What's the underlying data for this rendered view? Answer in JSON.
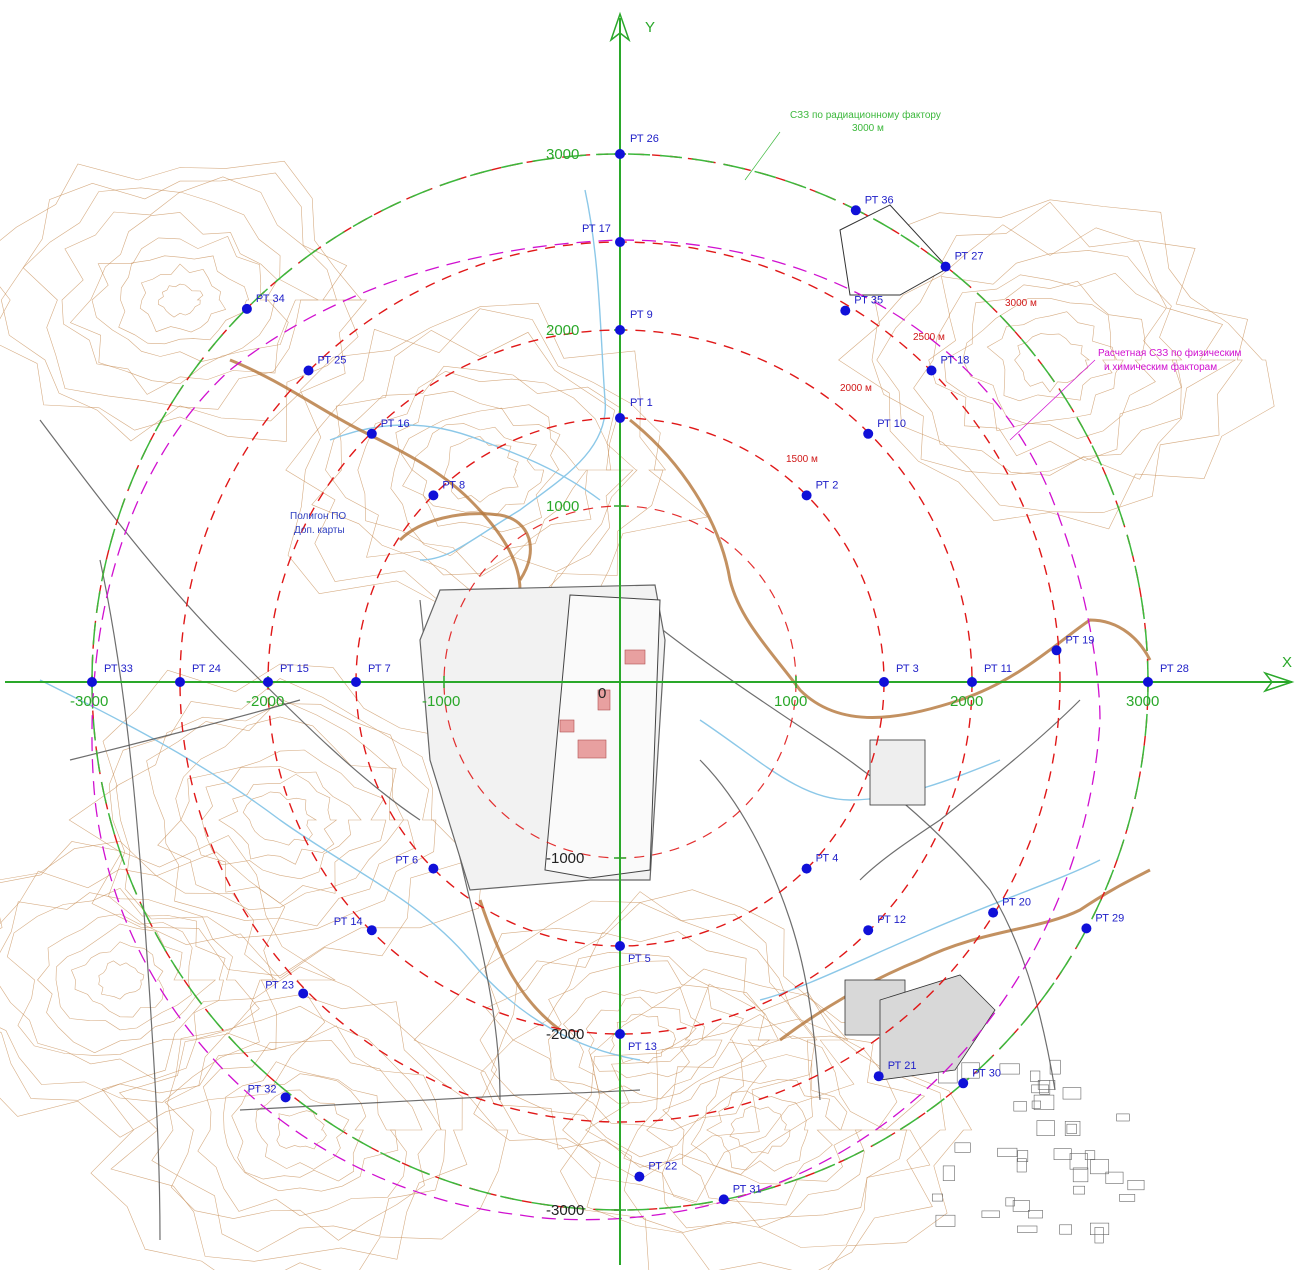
{
  "map": {
    "axes": {
      "x_label": "X",
      "y_label": "Y",
      "origin_label": "0",
      "x_ticks": [
        {
          "value": -3000,
          "label": "-3000"
        },
        {
          "value": -2000,
          "label": "-2000"
        },
        {
          "value": -1000,
          "label": "-1000"
        },
        {
          "value": 1000,
          "label": "1000"
        },
        {
          "value": 2000,
          "label": "2000"
        },
        {
          "value": 3000,
          "label": "3000"
        }
      ],
      "y_ticks": [
        {
          "value": 3000,
          "label": "3000"
        },
        {
          "value": 2000,
          "label": "2000"
        },
        {
          "value": 1000,
          "label": "1000"
        },
        {
          "value": -1000,
          "label": "-1000"
        },
        {
          "value": -2000,
          "label": "-2000"
        },
        {
          "value": -3000,
          "label": "-3000"
        }
      ]
    },
    "rings": [
      {
        "radius_m": 1500,
        "label": "1500 м"
      },
      {
        "radius_m": 2000,
        "label": "2000 м"
      },
      {
        "radius_m": 2500,
        "label": "2500 м"
      },
      {
        "radius_m": 3000,
        "label": "3000 м"
      }
    ],
    "annotations": {
      "radiation_zone": [
        "СЗЗ по радиационному фактору",
        "3000 м"
      ],
      "calc_zone": [
        "Расчетная СЗЗ по физическим",
        "и химическим факторам"
      ],
      "polygon": [
        "Полигон ПО",
        "Доп. карты"
      ]
    },
    "points": [
      {
        "label": "РТ 1",
        "x": 0,
        "y": 1500
      },
      {
        "label": "РТ 2",
        "x": 1060,
        "y": 1060
      },
      {
        "label": "РТ 3",
        "x": 1500,
        "y": 0
      },
      {
        "label": "РТ 4",
        "x": 1060,
        "y": -1060
      },
      {
        "label": "РТ 5",
        "x": 0,
        "y": -1500
      },
      {
        "label": "РТ 6",
        "x": -1060,
        "y": -1060
      },
      {
        "label": "РТ 7",
        "x": -1500,
        "y": 0
      },
      {
        "label": "РТ 8",
        "x": -1060,
        "y": 1060
      },
      {
        "label": "РТ 9",
        "x": 0,
        "y": 2000
      },
      {
        "label": "РТ 10",
        "x": 1410,
        "y": 1410
      },
      {
        "label": "РТ 11",
        "x": 2000,
        "y": 0
      },
      {
        "label": "РТ 12",
        "x": 1410,
        "y": -1410
      },
      {
        "label": "РТ 13",
        "x": 0,
        "y": -2000
      },
      {
        "label": "РТ 14",
        "x": -1410,
        "y": -1410
      },
      {
        "label": "РТ 15",
        "x": -2000,
        "y": 0
      },
      {
        "label": "РТ 16",
        "x": -1410,
        "y": 1410
      },
      {
        "label": "РТ 17",
        "x": 0,
        "y": 2500
      },
      {
        "label": "РТ 18",
        "x": 1770,
        "y": 1770
      },
      {
        "label": "РТ 19",
        "x": 2480,
        "y": 180
      },
      {
        "label": "РТ 20",
        "x": 2120,
        "y": -1310
      },
      {
        "label": "РТ 21",
        "x": 1470,
        "y": -2240
      },
      {
        "label": "РТ 22",
        "x": 110,
        "y": -2810
      },
      {
        "label": "РТ 23",
        "x": -1800,
        "y": -1770
      },
      {
        "label": "РТ 24",
        "x": -2500,
        "y": 0
      },
      {
        "label": "РТ 25",
        "x": -1770,
        "y": 1770
      },
      {
        "label": "РТ 26",
        "x": 0,
        "y": 3000
      },
      {
        "label": "РТ 27",
        "x": 1850,
        "y": 2360
      },
      {
        "label": "РТ 28",
        "x": 3000,
        "y": 0
      },
      {
        "label": "РТ 29",
        "x": 2650,
        "y": -1400
      },
      {
        "label": "РТ 30",
        "x": 1950,
        "y": -2280
      },
      {
        "label": "РТ 31",
        "x": 590,
        "y": -2940
      },
      {
        "label": "РТ 32",
        "x": -1900,
        "y": -2360
      },
      {
        "label": "РТ 33",
        "x": -3000,
        "y": 0
      },
      {
        "label": "РТ 34",
        "x": -2120,
        "y": 2120
      },
      {
        "label": "РТ 35",
        "x": 1280,
        "y": 2110
      },
      {
        "label": "РТ 36",
        "x": 1340,
        "y": 2680
      }
    ],
    "colors": {
      "axis": "#2aa82a",
      "ring": "#e01818",
      "zone_green": "#3cb83c",
      "zone_magenta": "#d010d0",
      "point": "#1010d8",
      "contour": "#c8905a",
      "river": "#8cc8e8",
      "road": "#555555"
    }
  }
}
